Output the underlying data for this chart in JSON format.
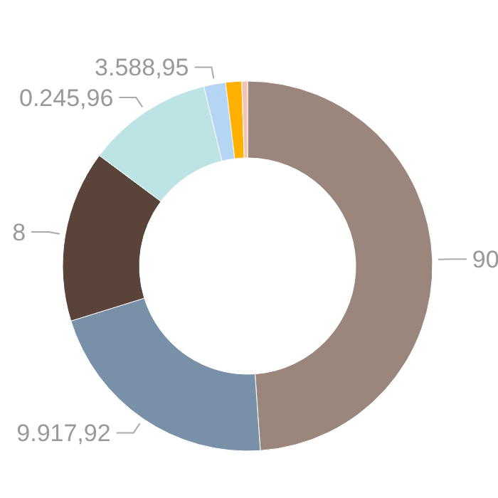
{
  "chart_data": {
    "type": "donut",
    "categories": [
      null,
      null,
      null,
      null,
      null,
      null,
      null
    ],
    "values": [
      48.9,
      21.3,
      15.0,
      11.0,
      1.9,
      1.4,
      0.5
    ],
    "colors": [
      "#9a867c",
      "#7890a8",
      "#5a4339",
      "#bde4e4",
      "#b4d6f4",
      "#ffb000",
      "#f4c4b4"
    ],
    "annotations": [
      "90",
      "9.917,92",
      "8",
      "0.245,96",
      "3.588,95"
    ]
  }
}
